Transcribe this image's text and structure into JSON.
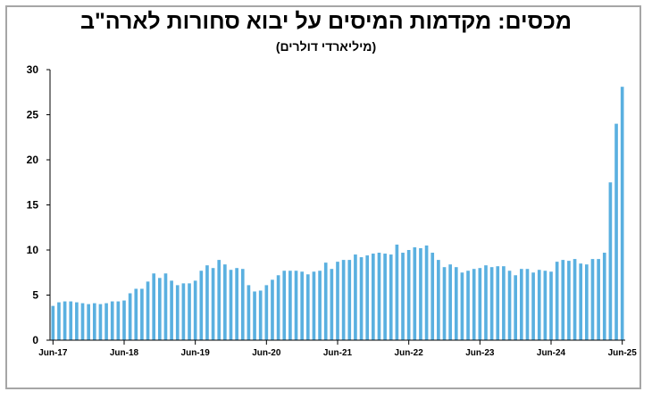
{
  "chart_data": {
    "type": "bar",
    "title": "מכסים: מקדמות המיסים על יבוא סחורות לארה\"ב",
    "subtitle": "(מיליארדי דולרים)",
    "xlabel": "",
    "ylabel": "",
    "ylim": [
      0,
      30
    ],
    "yticks": [
      0,
      5,
      10,
      15,
      20,
      25,
      30
    ],
    "grid": false,
    "bar_color": "#5ab0e0",
    "x_tick_labels": [
      "Jun-17",
      "Jun-18",
      "Jun-19",
      "Jun-20",
      "Jun-21",
      "Jun-22",
      "Jun-23",
      "Jun-24",
      "Jun-25"
    ],
    "x_tick_positions": [
      0,
      12,
      24,
      36,
      48,
      60,
      72,
      84,
      96
    ],
    "values": [
      3.8,
      4.2,
      4.3,
      4.3,
      4.2,
      4.1,
      4.0,
      4.1,
      4.0,
      4.1,
      4.3,
      4.3,
      4.4,
      5.2,
      5.7,
      5.7,
      6.5,
      7.4,
      6.9,
      7.4,
      6.6,
      6.1,
      6.3,
      6.3,
      6.6,
      7.7,
      8.3,
      8.0,
      8.9,
      8.4,
      7.8,
      8.0,
      7.9,
      6.1,
      5.4,
      5.5,
      6.1,
      6.7,
      7.2,
      7.7,
      7.7,
      7.7,
      7.6,
      7.3,
      7.6,
      7.7,
      8.6,
      7.9,
      8.7,
      8.9,
      8.9,
      9.5,
      9.2,
      9.4,
      9.6,
      9.7,
      9.6,
      9.5,
      10.6,
      9.7,
      10.0,
      10.3,
      10.2,
      10.5,
      9.7,
      8.9,
      8.1,
      8.4,
      8.1,
      7.5,
      7.7,
      7.9,
      8.0,
      8.3,
      8.1,
      8.2,
      8.2,
      7.7,
      7.2,
      7.9,
      7.9,
      7.5,
      7.8,
      7.7,
      7.6,
      8.7,
      8.9,
      8.8,
      9.0,
      8.5,
      8.4,
      9.0,
      9.0,
      9.7,
      17.5,
      24.0,
      28.1
    ]
  }
}
